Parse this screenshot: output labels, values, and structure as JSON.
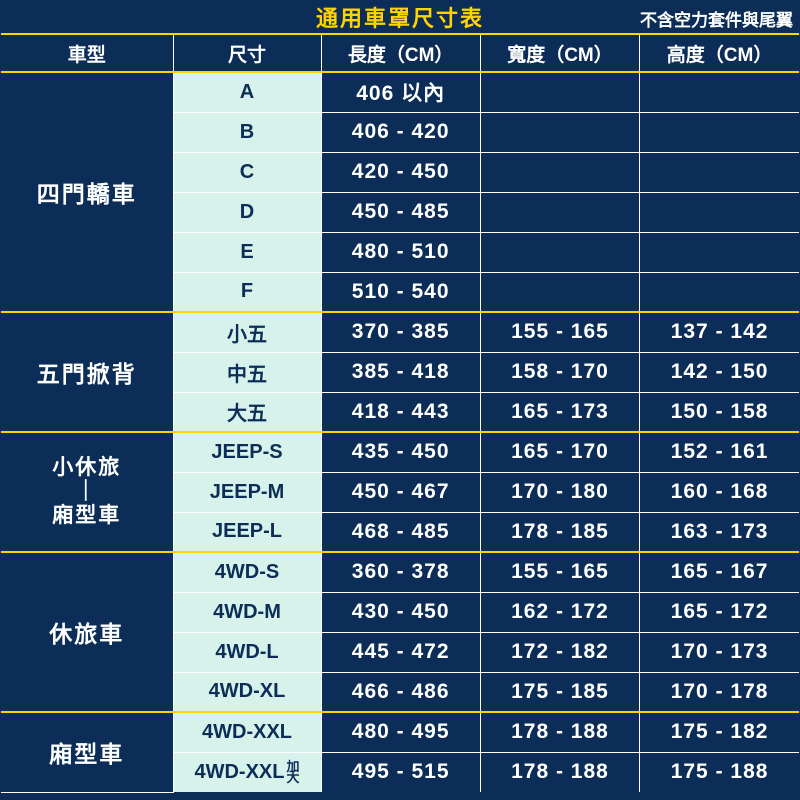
{
  "title": "通用車罩尺寸表",
  "subtitle": "不含空力套件與尾翼",
  "columns": [
    "車型",
    "尺寸",
    "長度（CM）",
    "寬度（CM）",
    "高度（CM）"
  ],
  "groups": [
    {
      "name": "四門轎車",
      "rows": [
        {
          "size": "A",
          "len": "406 以內",
          "wid": "",
          "hei": ""
        },
        {
          "size": "B",
          "len": "406 - 420",
          "wid": "",
          "hei": ""
        },
        {
          "size": "C",
          "len": "420 - 450",
          "wid": "",
          "hei": ""
        },
        {
          "size": "D",
          "len": "450 - 485",
          "wid": "",
          "hei": ""
        },
        {
          "size": "E",
          "len": "480 - 510",
          "wid": "",
          "hei": ""
        },
        {
          "size": "F",
          "len": "510 - 540",
          "wid": "",
          "hei": ""
        }
      ]
    },
    {
      "name": "五門掀背",
      "rows": [
        {
          "size": "小五",
          "len": "370 - 385",
          "wid": "155 - 165",
          "hei": "137 - 142"
        },
        {
          "size": "中五",
          "len": "385 - 418",
          "wid": "158 - 170",
          "hei": "142 - 150"
        },
        {
          "size": "大五",
          "len": "418 - 443",
          "wid": "165 - 173",
          "hei": "150 - 158"
        }
      ]
    },
    {
      "name_lines": [
        "小休旅",
        "｜",
        "廂型車"
      ],
      "rows": [
        {
          "size": "JEEP-S",
          "len": "435 - 450",
          "wid": "165 - 170",
          "hei": "152 - 161"
        },
        {
          "size": "JEEP-M",
          "len": "450 - 467",
          "wid": "170 - 180",
          "hei": "160 - 168"
        },
        {
          "size": "JEEP-L",
          "len": "468 - 485",
          "wid": "178 - 185",
          "hei": "163 - 173"
        }
      ]
    },
    {
      "name": "休旅車",
      "rows": [
        {
          "size": "4WD-S",
          "len": "360 - 378",
          "wid": "155 - 165",
          "hei": "165 - 167"
        },
        {
          "size": "4WD-M",
          "len": "430 - 450",
          "wid": "162 - 172",
          "hei": "165 - 172"
        },
        {
          "size": "4WD-L",
          "len": "445 - 472",
          "wid": "172 - 182",
          "hei": "170 - 173"
        },
        {
          "size": "4WD-XL",
          "len": "466 - 486",
          "wid": "175 - 185",
          "hei": "170 - 178"
        }
      ]
    },
    {
      "name": "廂型車",
      "rows": [
        {
          "size": "4WD-XXL",
          "len": "480 - 495",
          "wid": "178 - 188",
          "hei": "175 - 182"
        },
        {
          "size_main": "4WD-XXL",
          "size_suffix": "加\n大",
          "len": "495 - 515",
          "wid": "178 - 188",
          "hei": "175 - 188"
        }
      ]
    }
  ]
}
